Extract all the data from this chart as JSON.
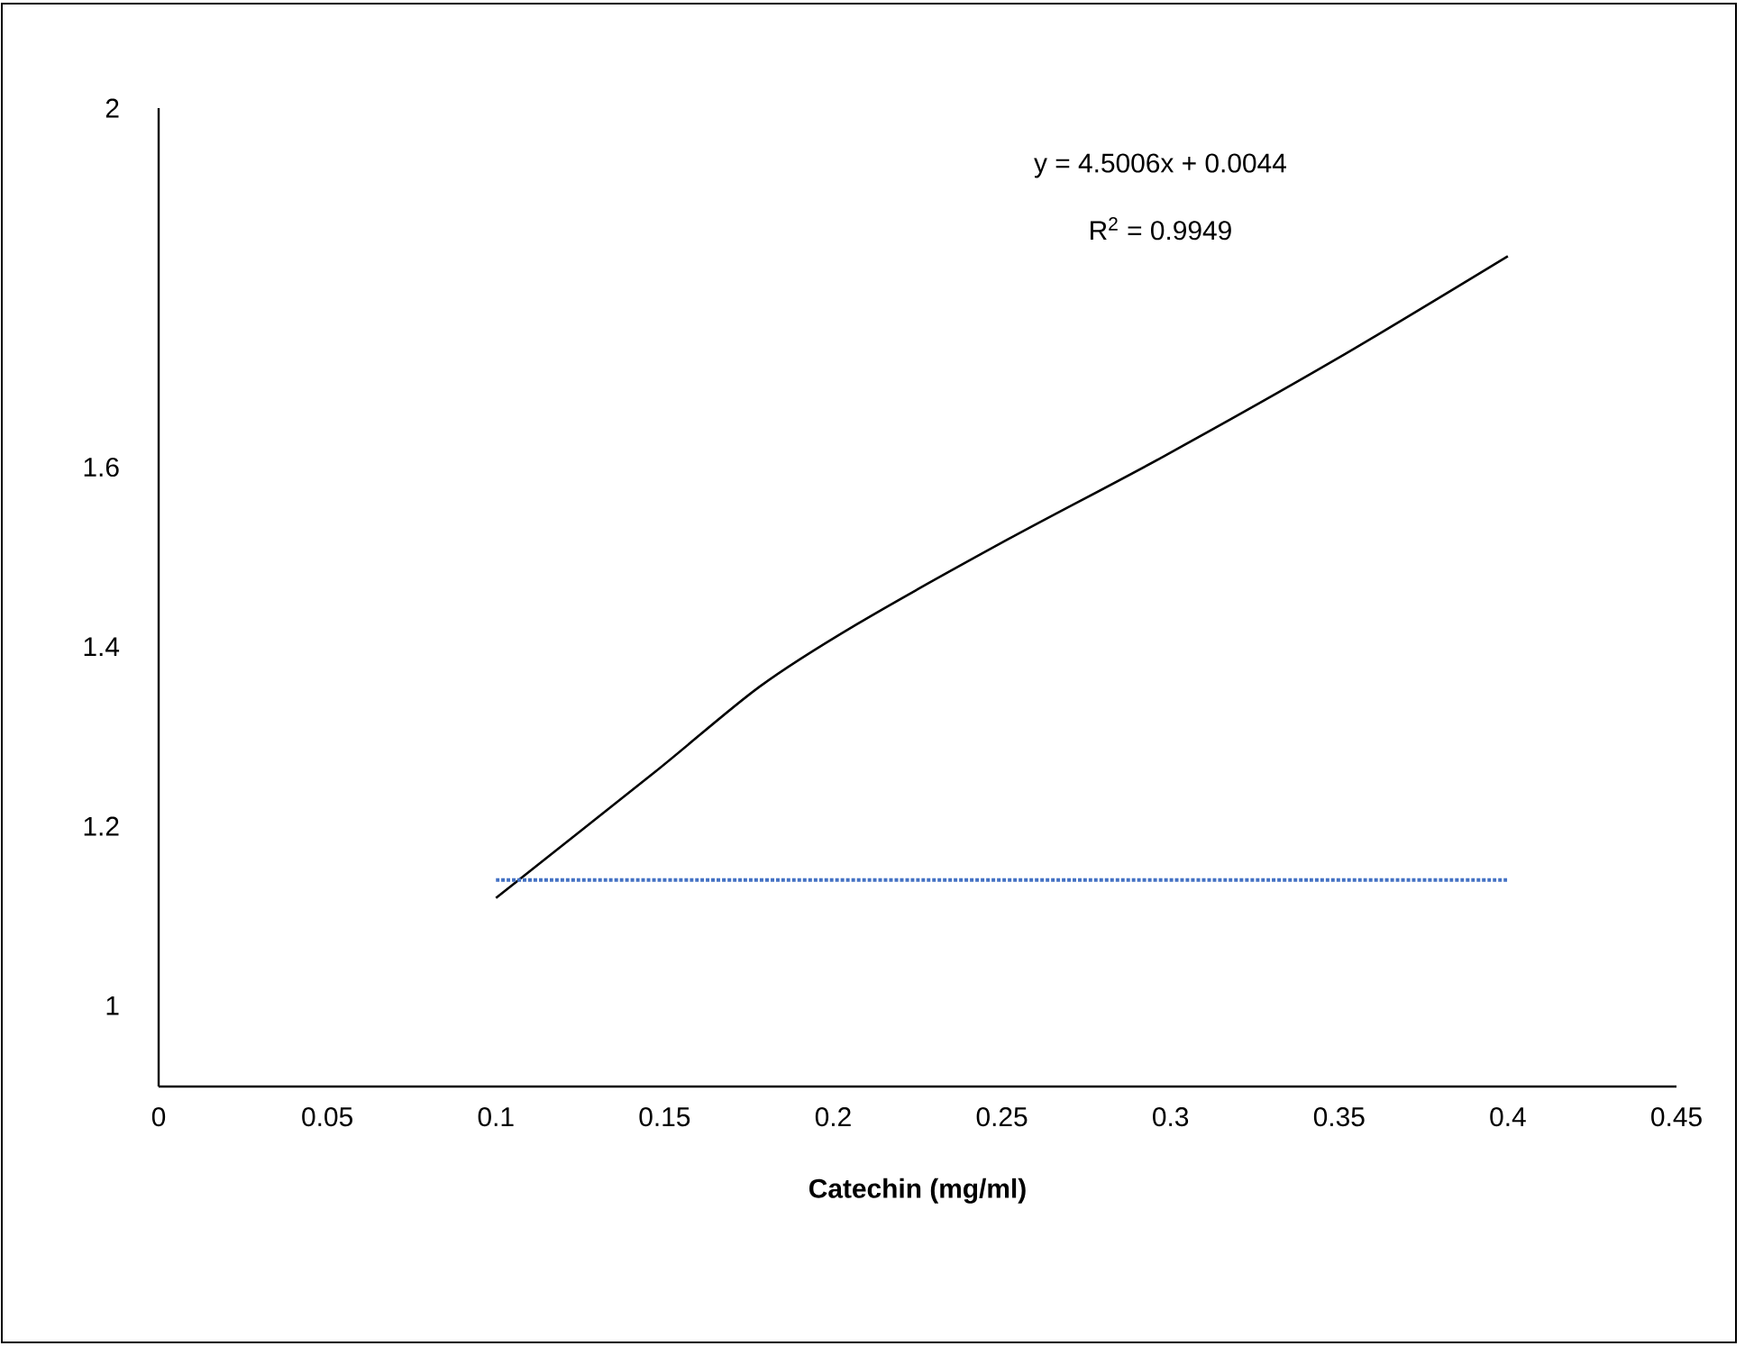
{
  "chart_data": {
    "type": "line",
    "xlabel": "Catechin (mg/ml)",
    "series": [
      {
        "color": "#000000",
        "line_style": "solid",
        "x": [
          0.1,
          0.147,
          0.178,
          0.207,
          0.252,
          0.297,
          0.349,
          0.4
        ],
        "values": [
          1.12,
          1.26,
          1.355,
          1.425,
          1.52,
          1.61,
          1.72,
          1.835
        ]
      },
      {
        "color": "#4472c4",
        "line_style": "dotted",
        "x": [
          0.1,
          0.4
        ],
        "values": [
          1.14,
          1.14
        ]
      }
    ],
    "xlim": [
      0,
      0.45
    ],
    "xticks": [
      0,
      0.05,
      0.1,
      0.15,
      0.2,
      0.25,
      0.3,
      0.35,
      0.4,
      0.45
    ],
    "ylim": [
      0.91,
      2
    ],
    "yticks": [
      1,
      1.2,
      1.4,
      1.6,
      2
    ],
    "annotations": [
      "y = 4.5006x + 0.0044",
      "R$^{2}$ = 0.9949"
    ],
    "grid": false,
    "marker": "none"
  }
}
